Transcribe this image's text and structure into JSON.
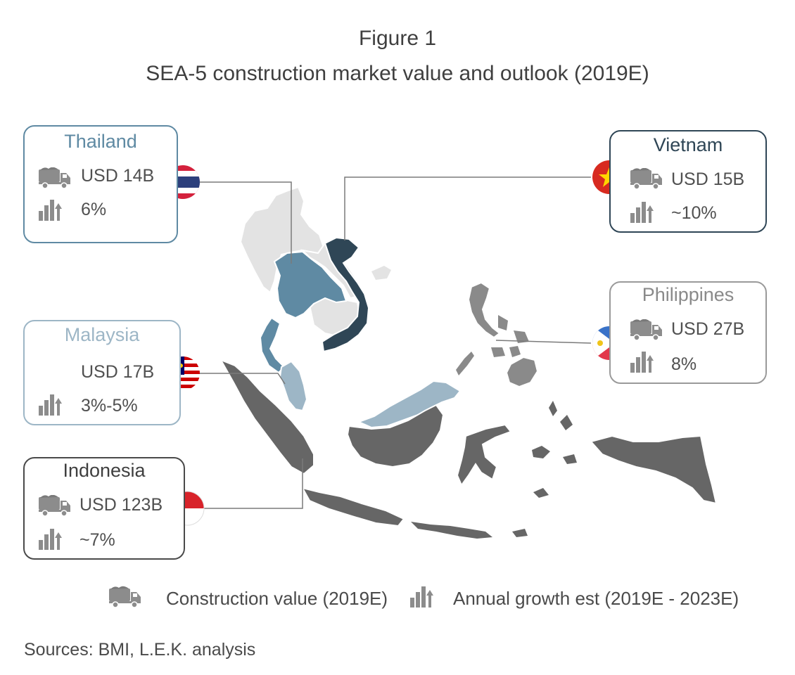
{
  "figure_label": "Figure 1",
  "figure_title": "SEA-5 construction market value and outlook (2019E)",
  "colors": {
    "thailand": "#5f8aa3",
    "vietnam": "#2f4656",
    "malaysia": "#9db6c6",
    "indonesia": "#666666",
    "philippines": "#8a8a8a",
    "other_land": "#e3e3e3"
  },
  "countries": {
    "thailand": {
      "name": "Thailand",
      "value": "USD 14B",
      "growth": "6%",
      "flag": "thailand-flag-icon"
    },
    "vietnam": {
      "name": "Vietnam",
      "value": "USD 15B",
      "growth": "~10%",
      "flag": "vietnam-flag-icon"
    },
    "philippines": {
      "name": "Philippines",
      "value": "USD 27B",
      "growth": "8%",
      "flag": "philippines-flag-icon"
    },
    "malaysia": {
      "name": "Malaysia",
      "value": "USD 17B",
      "growth": "3%-5%",
      "flag": "malaysia-flag-icon"
    },
    "indonesia": {
      "name": "Indonesia",
      "value": "USD 123B",
      "growth": "~7%",
      "flag": "indonesia-flag-icon"
    }
  },
  "legend": {
    "value_label": "Construction value (2019E)",
    "growth_label": "Annual growth est (2019E - 2023E)",
    "value_icon": "truck-icon",
    "growth_icon": "growth-bars-icon"
  },
  "sources": "Sources: BMI, L.E.K. analysis"
}
